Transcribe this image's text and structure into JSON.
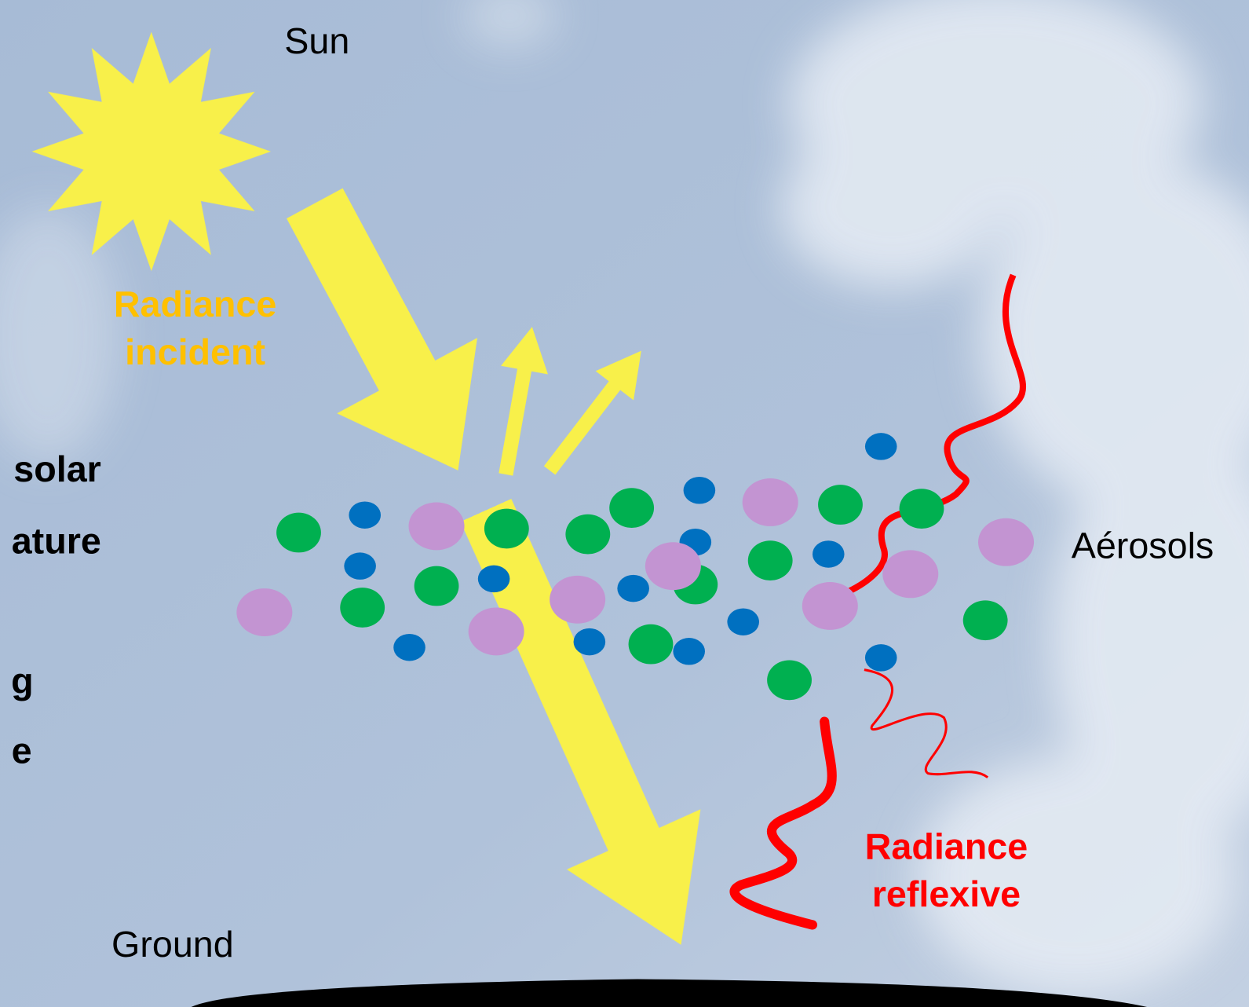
{
  "labels": {
    "sun": "Sun",
    "radiance_incident": [
      "Radiance",
      "incident"
    ],
    "aerosols": "Aérosols",
    "radiance_reflexive": [
      "Radiance",
      "reflexive"
    ],
    "ground": "Ground",
    "left_fragments": [
      "solar",
      "ature",
      "g",
      "e"
    ]
  }
}
